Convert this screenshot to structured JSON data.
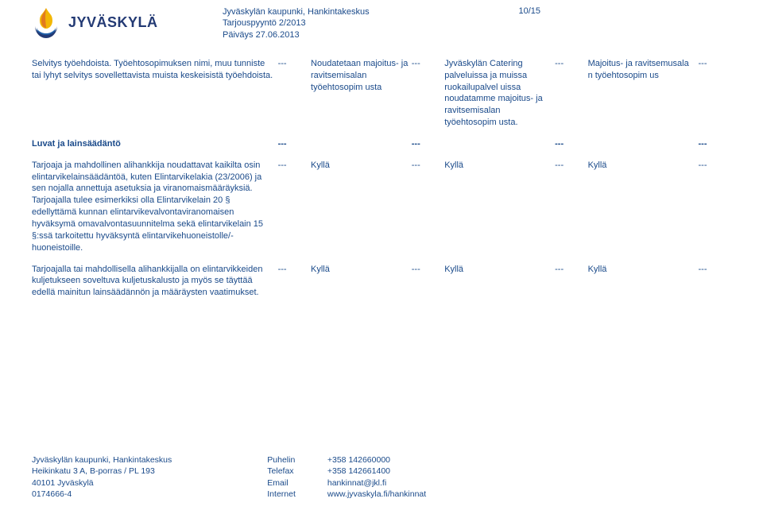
{
  "header": {
    "logo_text": "JYVÄSKYLÄ",
    "org_line1": "Jyväskylän kaupunki, Hankintakeskus",
    "org_line2": "Tarjouspyyntö 2/2013",
    "org_line3": "Päiväys 27.06.2013",
    "page_number": "10/15"
  },
  "rows": [
    {
      "c0": "Selvitys työehdoista. Työehtosopimuksen nimi, muu tunniste tai lyhyt selvitys sovellettavista muista keskeisistä työehdoista.",
      "c1": "---",
      "c2": "Noudatetaan majoitus- ja ravitsemisalan työehtosopim usta",
      "c3": "---",
      "c4": "Jyväskylän Catering palveluissa ja muissa ruokailupalvel uissa noudatamme majoitus- ja ravitsemisalan työehtosopim usta.",
      "c5": "---",
      "c6": "Majoitus- ja ravitsemusala n työehtosopim us",
      "c7": "---"
    },
    {
      "bold": true,
      "c0": "Luvat ja lainsäädäntö",
      "c1": "---",
      "c2": "",
      "c3": "---",
      "c4": "",
      "c5": "---",
      "c6": "",
      "c7": "---"
    },
    {
      "c0": "Tarjoaja ja mahdollinen alihankkija noudattavat kaikilta osin elintarvikelainsäädäntöä, kuten Elintarvikelakia (23/2006) ja sen nojalla annettuja asetuksia ja viranomaismääräyksiä. Tarjoajalla tulee esimerkiksi olla Elintarvikelain 20 § edellyttämä kunnan elintarvikevalvontaviranomaisen hyväksymä omavalvontasuunnitelma sekä elintarvikelain 15 §:ssä tarkoitettu hyväksyntä elintarvikehuoneistolle/-huoneistoille.",
      "c1": "---",
      "c2": "Kyllä",
      "c3": "---",
      "c4": "Kyllä",
      "c5": "---",
      "c6": "Kyllä",
      "c7": "---"
    },
    {
      "c0": "Tarjoajalla tai mahdollisella alihankkijalla on elintarvikkeiden kuljetukseen soveltuva kuljetuskalusto ja myös se täyttää edellä mainitun lainsäädännön ja määräysten vaatimukset.",
      "c1": "---",
      "c2": "Kyllä",
      "c3": "---",
      "c4": "Kyllä",
      "c5": "---",
      "c6": "Kyllä",
      "c7": "---"
    }
  ],
  "footer": {
    "addr": "Jyväskylän kaupunki, Hankintakeskus\nHeikinkatu 3 A, B-porras / PL 193\n40101 Jyväskylä\n0174666-4",
    "labels": "Puhelin\nTelefax\nEmail\nInternet",
    "values": "+358 142660000\n+358 142661400\nhankinnat@jkl.fi\nwww.jyvaskyla.fi/hankinnat"
  },
  "colors": {
    "text": "#1a4a8a",
    "logo_text": "#233a74",
    "flame_orange": "#e27a1f",
    "flame_yellow": "#f2b705",
    "flame_blue": "#1f5fa8",
    "flame_navy": "#233a74"
  }
}
